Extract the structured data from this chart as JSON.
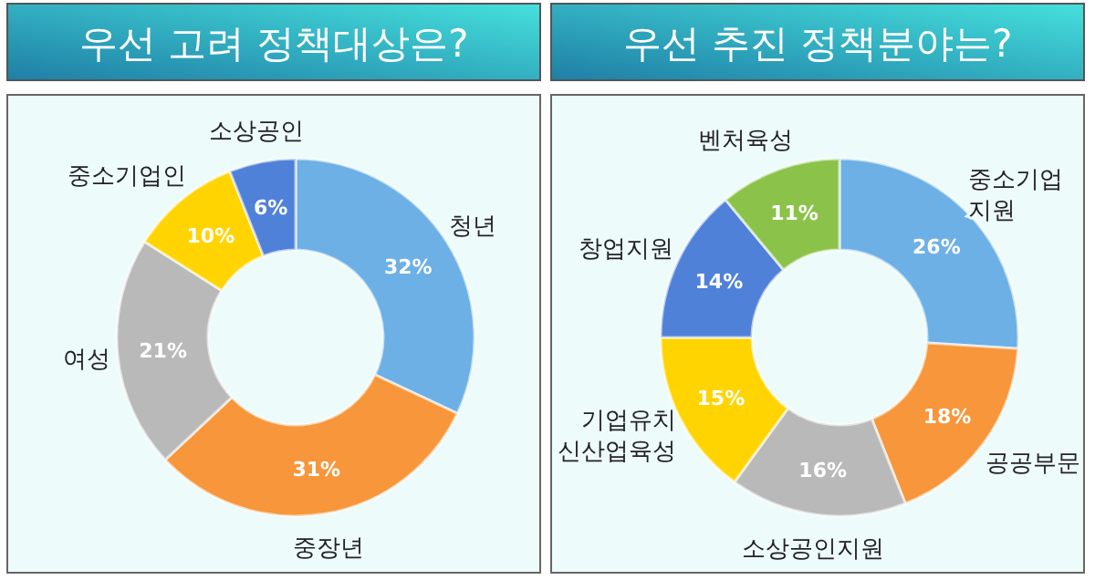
{
  "chart_data": [
    {
      "type": "donut",
      "title": "우선 고려 정책대상은?",
      "categories": [
        "청년",
        "중장년",
        "여성",
        "중소기업인",
        "소상공인"
      ],
      "values": [
        32,
        31,
        21,
        10,
        6
      ],
      "colors": [
        "#6cb0e6",
        "#f7963a",
        "#b9b9b9",
        "#ffd400",
        "#4f81d9"
      ],
      "value_labels": [
        "32%",
        "31%",
        "21%",
        "10%",
        "6%"
      ]
    },
    {
      "type": "donut",
      "title": "우선 추진 정책분야는?",
      "categories": [
        "중소기업 지원",
        "공공부문",
        "소상공인지원",
        "기업유치 신산업육성",
        "창업지원",
        "벤처육성"
      ],
      "values": [
        26,
        18,
        16,
        15,
        14,
        11
      ],
      "colors": [
        "#6cb0e6",
        "#f7963a",
        "#b9b9b9",
        "#ffd400",
        "#4f81d9",
        "#8bc34a"
      ],
      "value_labels": [
        "26%",
        "18%",
        "16%",
        "15%",
        "14%",
        "11%"
      ]
    }
  ]
}
